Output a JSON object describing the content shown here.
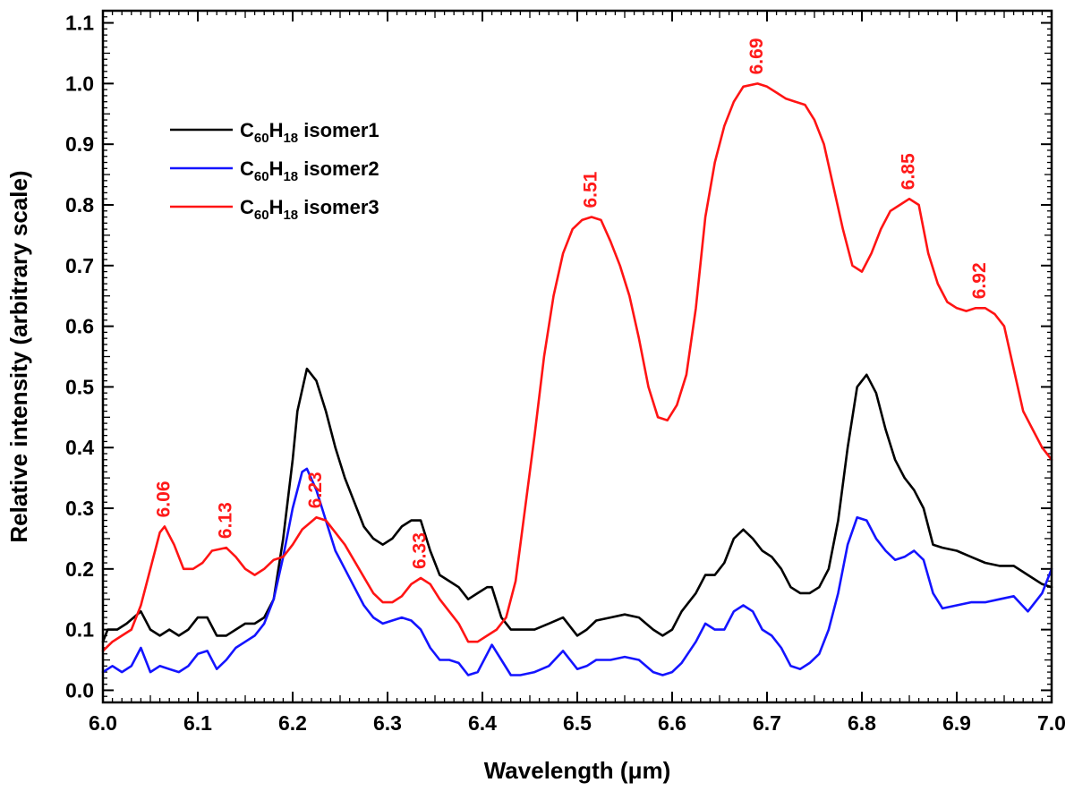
{
  "chart_data": {
    "type": "line",
    "title": "",
    "xlabel_main": "Wavelength (",
    "xlabel_unit": "μm",
    "xlabel_end": ")",
    "ylabel": "Relative intensity (arbitrary scale)",
    "xlim": [
      6.0,
      7.0
    ],
    "ylim": [
      -0.02,
      1.12
    ],
    "x_ticks": [
      "6.0",
      "6.1",
      "6.2",
      "6.3",
      "6.4",
      "6.5",
      "6.6",
      "6.7",
      "6.8",
      "6.9",
      "7.0"
    ],
    "y_ticks": [
      "0.0",
      "0.1",
      "0.2",
      "0.3",
      "0.4",
      "0.5",
      "0.6",
      "0.7",
      "0.8",
      "0.9",
      "1.0",
      "1.1"
    ],
    "legend_position": "top-left",
    "series": [
      {
        "name": "C60H18 isomer1",
        "legend_base": "C",
        "legend_sub1": "60",
        "legend_mid": "H",
        "legend_sub2": "18",
        "legend_tail": " isomer1",
        "color": "#000000",
        "points": [
          [
            6.0,
            0.08
          ],
          [
            6.005,
            0.1
          ],
          [
            6.015,
            0.1
          ],
          [
            6.025,
            0.11
          ],
          [
            6.04,
            0.13
          ],
          [
            6.05,
            0.1
          ],
          [
            6.06,
            0.09
          ],
          [
            6.07,
            0.1
          ],
          [
            6.08,
            0.09
          ],
          [
            6.09,
            0.1
          ],
          [
            6.1,
            0.12
          ],
          [
            6.11,
            0.12
          ],
          [
            6.12,
            0.09
          ],
          [
            6.13,
            0.09
          ],
          [
            6.14,
            0.1
          ],
          [
            6.15,
            0.11
          ],
          [
            6.16,
            0.11
          ],
          [
            6.17,
            0.12
          ],
          [
            6.18,
            0.15
          ],
          [
            6.19,
            0.25
          ],
          [
            6.2,
            0.38
          ],
          [
            6.205,
            0.46
          ],
          [
            6.215,
            0.53
          ],
          [
            6.225,
            0.51
          ],
          [
            6.235,
            0.46
          ],
          [
            6.245,
            0.4
          ],
          [
            6.255,
            0.35
          ],
          [
            6.265,
            0.31
          ],
          [
            6.275,
            0.27
          ],
          [
            6.285,
            0.25
          ],
          [
            6.295,
            0.24
          ],
          [
            6.305,
            0.25
          ],
          [
            6.315,
            0.27
          ],
          [
            6.325,
            0.28
          ],
          [
            6.335,
            0.28
          ],
          [
            6.345,
            0.23
          ],
          [
            6.355,
            0.19
          ],
          [
            6.365,
            0.18
          ],
          [
            6.375,
            0.17
          ],
          [
            6.385,
            0.15
          ],
          [
            6.395,
            0.16
          ],
          [
            6.405,
            0.17
          ],
          [
            6.41,
            0.17
          ],
          [
            6.42,
            0.12
          ],
          [
            6.43,
            0.1
          ],
          [
            6.44,
            0.1
          ],
          [
            6.455,
            0.1
          ],
          [
            6.47,
            0.11
          ],
          [
            6.485,
            0.12
          ],
          [
            6.5,
            0.09
          ],
          [
            6.51,
            0.1
          ],
          [
            6.52,
            0.115
          ],
          [
            6.535,
            0.12
          ],
          [
            6.55,
            0.125
          ],
          [
            6.565,
            0.12
          ],
          [
            6.58,
            0.1
          ],
          [
            6.59,
            0.09
          ],
          [
            6.6,
            0.1
          ],
          [
            6.61,
            0.13
          ],
          [
            6.625,
            0.16
          ],
          [
            6.635,
            0.19
          ],
          [
            6.645,
            0.19
          ],
          [
            6.655,
            0.21
          ],
          [
            6.665,
            0.25
          ],
          [
            6.675,
            0.265
          ],
          [
            6.685,
            0.25
          ],
          [
            6.695,
            0.23
          ],
          [
            6.705,
            0.22
          ],
          [
            6.715,
            0.2
          ],
          [
            6.725,
            0.17
          ],
          [
            6.735,
            0.16
          ],
          [
            6.745,
            0.16
          ],
          [
            6.755,
            0.17
          ],
          [
            6.765,
            0.2
          ],
          [
            6.775,
            0.28
          ],
          [
            6.785,
            0.4
          ],
          [
            6.795,
            0.5
          ],
          [
            6.805,
            0.52
          ],
          [
            6.815,
            0.49
          ],
          [
            6.825,
            0.43
          ],
          [
            6.835,
            0.38
          ],
          [
            6.845,
            0.35
          ],
          [
            6.855,
            0.33
          ],
          [
            6.865,
            0.3
          ],
          [
            6.875,
            0.24
          ],
          [
            6.885,
            0.235
          ],
          [
            6.9,
            0.23
          ],
          [
            6.915,
            0.22
          ],
          [
            6.93,
            0.21
          ],
          [
            6.945,
            0.205
          ],
          [
            6.96,
            0.205
          ],
          [
            6.975,
            0.19
          ],
          [
            6.99,
            0.175
          ],
          [
            7.0,
            0.17
          ]
        ]
      },
      {
        "name": "C60H18 isomer2",
        "legend_base": "C",
        "legend_sub1": "60",
        "legend_mid": "H",
        "legend_sub2": "18",
        "legend_tail": " isomer2",
        "color": "#1414ff",
        "points": [
          [
            6.0,
            0.03
          ],
          [
            6.01,
            0.04
          ],
          [
            6.02,
            0.03
          ],
          [
            6.03,
            0.04
          ],
          [
            6.04,
            0.07
          ],
          [
            6.05,
            0.03
          ],
          [
            6.06,
            0.04
          ],
          [
            6.07,
            0.035
          ],
          [
            6.08,
            0.03
          ],
          [
            6.09,
            0.04
          ],
          [
            6.1,
            0.06
          ],
          [
            6.11,
            0.065
          ],
          [
            6.12,
            0.035
          ],
          [
            6.13,
            0.05
          ],
          [
            6.14,
            0.07
          ],
          [
            6.15,
            0.08
          ],
          [
            6.16,
            0.09
          ],
          [
            6.17,
            0.11
          ],
          [
            6.18,
            0.15
          ],
          [
            6.19,
            0.22
          ],
          [
            6.2,
            0.3
          ],
          [
            6.21,
            0.36
          ],
          [
            6.215,
            0.365
          ],
          [
            6.225,
            0.33
          ],
          [
            6.235,
            0.28
          ],
          [
            6.245,
            0.23
          ],
          [
            6.255,
            0.2
          ],
          [
            6.265,
            0.17
          ],
          [
            6.275,
            0.14
          ],
          [
            6.285,
            0.12
          ],
          [
            6.295,
            0.11
          ],
          [
            6.305,
            0.115
          ],
          [
            6.315,
            0.12
          ],
          [
            6.325,
            0.115
          ],
          [
            6.335,
            0.1
          ],
          [
            6.345,
            0.07
          ],
          [
            6.355,
            0.05
          ],
          [
            6.365,
            0.05
          ],
          [
            6.375,
            0.045
          ],
          [
            6.385,
            0.025
          ],
          [
            6.395,
            0.03
          ],
          [
            6.405,
            0.06
          ],
          [
            6.41,
            0.075
          ],
          [
            6.42,
            0.05
          ],
          [
            6.43,
            0.025
          ],
          [
            6.44,
            0.025
          ],
          [
            6.455,
            0.03
          ],
          [
            6.47,
            0.04
          ],
          [
            6.485,
            0.065
          ],
          [
            6.5,
            0.035
          ],
          [
            6.51,
            0.04
          ],
          [
            6.52,
            0.05
          ],
          [
            6.535,
            0.05
          ],
          [
            6.55,
            0.055
          ],
          [
            6.565,
            0.05
          ],
          [
            6.58,
            0.03
          ],
          [
            6.59,
            0.025
          ],
          [
            6.6,
            0.03
          ],
          [
            6.61,
            0.045
          ],
          [
            6.625,
            0.08
          ],
          [
            6.635,
            0.11
          ],
          [
            6.645,
            0.1
          ],
          [
            6.655,
            0.1
          ],
          [
            6.665,
            0.13
          ],
          [
            6.675,
            0.14
          ],
          [
            6.685,
            0.13
          ],
          [
            6.695,
            0.1
          ],
          [
            6.705,
            0.09
          ],
          [
            6.715,
            0.07
          ],
          [
            6.725,
            0.04
          ],
          [
            6.735,
            0.035
          ],
          [
            6.745,
            0.045
          ],
          [
            6.755,
            0.06
          ],
          [
            6.765,
            0.1
          ],
          [
            6.775,
            0.16
          ],
          [
            6.785,
            0.24
          ],
          [
            6.795,
            0.285
          ],
          [
            6.805,
            0.28
          ],
          [
            6.815,
            0.25
          ],
          [
            6.825,
            0.23
          ],
          [
            6.835,
            0.215
          ],
          [
            6.845,
            0.22
          ],
          [
            6.855,
            0.23
          ],
          [
            6.865,
            0.215
          ],
          [
            6.875,
            0.16
          ],
          [
            6.885,
            0.135
          ],
          [
            6.9,
            0.14
          ],
          [
            6.915,
            0.145
          ],
          [
            6.93,
            0.145
          ],
          [
            6.945,
            0.15
          ],
          [
            6.96,
            0.155
          ],
          [
            6.975,
            0.13
          ],
          [
            6.99,
            0.16
          ],
          [
            7.0,
            0.2
          ]
        ]
      },
      {
        "name": "C60H18 isomer3",
        "legend_base": "C",
        "legend_sub1": "60",
        "legend_mid": "H",
        "legend_sub2": "18",
        "legend_tail": " isomer3",
        "color": "#ff1414",
        "points": [
          [
            6.0,
            0.065
          ],
          [
            6.01,
            0.08
          ],
          [
            6.02,
            0.09
          ],
          [
            6.03,
            0.1
          ],
          [
            6.04,
            0.14
          ],
          [
            6.05,
            0.2
          ],
          [
            6.06,
            0.26
          ],
          [
            6.065,
            0.27
          ],
          [
            6.075,
            0.24
          ],
          [
            6.085,
            0.2
          ],
          [
            6.095,
            0.2
          ],
          [
            6.105,
            0.21
          ],
          [
            6.115,
            0.23
          ],
          [
            6.13,
            0.235
          ],
          [
            6.14,
            0.22
          ],
          [
            6.15,
            0.2
          ],
          [
            6.16,
            0.19
          ],
          [
            6.17,
            0.2
          ],
          [
            6.18,
            0.215
          ],
          [
            6.19,
            0.22
          ],
          [
            6.2,
            0.24
          ],
          [
            6.21,
            0.265
          ],
          [
            6.225,
            0.285
          ],
          [
            6.235,
            0.28
          ],
          [
            6.245,
            0.26
          ],
          [
            6.255,
            0.24
          ],
          [
            6.27,
            0.2
          ],
          [
            6.285,
            0.16
          ],
          [
            6.295,
            0.145
          ],
          [
            6.305,
            0.145
          ],
          [
            6.315,
            0.155
          ],
          [
            6.325,
            0.175
          ],
          [
            6.335,
            0.185
          ],
          [
            6.345,
            0.175
          ],
          [
            6.355,
            0.15
          ],
          [
            6.365,
            0.13
          ],
          [
            6.375,
            0.11
          ],
          [
            6.385,
            0.08
          ],
          [
            6.395,
            0.08
          ],
          [
            6.405,
            0.09
          ],
          [
            6.415,
            0.1
          ],
          [
            6.425,
            0.12
          ],
          [
            6.435,
            0.18
          ],
          [
            6.445,
            0.3
          ],
          [
            6.455,
            0.42
          ],
          [
            6.465,
            0.55
          ],
          [
            6.475,
            0.65
          ],
          [
            6.485,
            0.72
          ],
          [
            6.495,
            0.76
          ],
          [
            6.505,
            0.775
          ],
          [
            6.515,
            0.78
          ],
          [
            6.525,
            0.775
          ],
          [
            6.535,
            0.74
          ],
          [
            6.545,
            0.7
          ],
          [
            6.555,
            0.65
          ],
          [
            6.565,
            0.58
          ],
          [
            6.575,
            0.5
          ],
          [
            6.585,
            0.45
          ],
          [
            6.595,
            0.445
          ],
          [
            6.605,
            0.47
          ],
          [
            6.615,
            0.52
          ],
          [
            6.625,
            0.63
          ],
          [
            6.635,
            0.78
          ],
          [
            6.645,
            0.87
          ],
          [
            6.655,
            0.93
          ],
          [
            6.665,
            0.97
          ],
          [
            6.675,
            0.995
          ],
          [
            6.69,
            1.0
          ],
          [
            6.7,
            0.995
          ],
          [
            6.71,
            0.985
          ],
          [
            6.72,
            0.975
          ],
          [
            6.73,
            0.97
          ],
          [
            6.74,
            0.965
          ],
          [
            6.75,
            0.94
          ],
          [
            6.76,
            0.9
          ],
          [
            6.77,
            0.83
          ],
          [
            6.78,
            0.76
          ],
          [
            6.79,
            0.7
          ],
          [
            6.8,
            0.69
          ],
          [
            6.81,
            0.72
          ],
          [
            6.82,
            0.76
          ],
          [
            6.83,
            0.79
          ],
          [
            6.84,
            0.8
          ],
          [
            6.85,
            0.81
          ],
          [
            6.86,
            0.8
          ],
          [
            6.87,
            0.72
          ],
          [
            6.88,
            0.67
          ],
          [
            6.89,
            0.64
          ],
          [
            6.9,
            0.63
          ],
          [
            6.91,
            0.625
          ],
          [
            6.92,
            0.63
          ],
          [
            6.93,
            0.63
          ],
          [
            6.94,
            0.62
          ],
          [
            6.95,
            0.6
          ],
          [
            6.96,
            0.53
          ],
          [
            6.97,
            0.46
          ],
          [
            6.98,
            0.43
          ],
          [
            6.99,
            0.4
          ],
          [
            7.0,
            0.38
          ]
        ]
      }
    ],
    "annotations": [
      {
        "text": "6.06",
        "x": 6.065,
        "y": 0.27
      },
      {
        "text": "6.13",
        "x": 6.13,
        "y": 0.235
      },
      {
        "text": "6.23",
        "x": 6.225,
        "y": 0.285
      },
      {
        "text": "6.33",
        "x": 6.335,
        "y": 0.185
      },
      {
        "text": "6.51",
        "x": 6.515,
        "y": 0.78
      },
      {
        "text": "6.69",
        "x": 6.69,
        "y": 1.0
      },
      {
        "text": "6.85",
        "x": 6.85,
        "y": 0.81
      },
      {
        "text": "6.92",
        "x": 6.925,
        "y": 0.63
      }
    ],
    "annotation_color": "#ff1a1a"
  }
}
